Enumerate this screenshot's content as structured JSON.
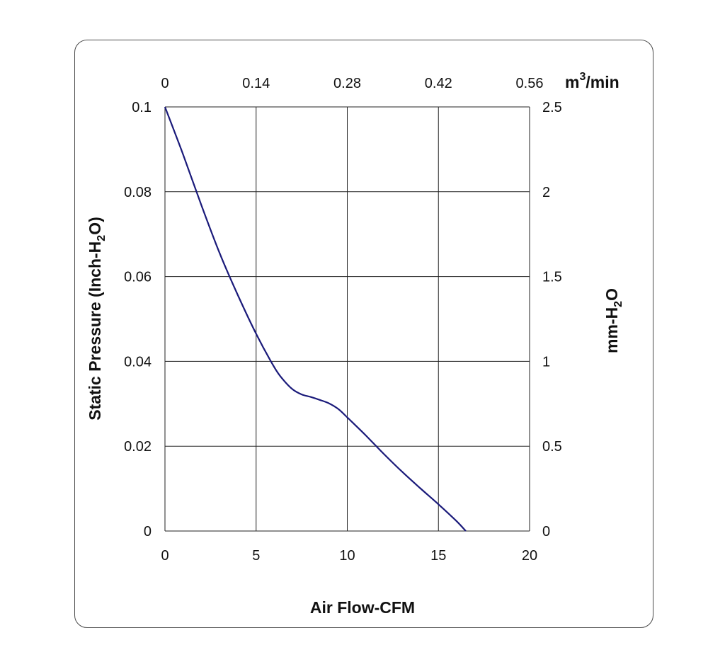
{
  "chart_data": {
    "type": "line",
    "xlabel": "Air Flow-CFM",
    "ylabel": {
      "pre": "Static Pressure (Inch-H",
      "sub": "2",
      "post": "O)"
    },
    "y2label": {
      "pre": "mm-H",
      "sub": "2",
      "post": "O"
    },
    "x2label": {
      "pre": "m",
      "sup": "3",
      "post": "/min"
    },
    "xlim": [
      0,
      20
    ],
    "ylim": [
      0,
      0.1
    ],
    "y2lim": [
      0,
      2.5
    ],
    "x2lim": [
      0,
      0.56
    ],
    "xticks": [
      "0",
      "5",
      "10",
      "15",
      "20"
    ],
    "yticks": [
      "0",
      "0.02",
      "0.04",
      "0.06",
      "0.08",
      "0.1"
    ],
    "y2ticks": [
      "0",
      "0.5",
      "1",
      "1.5",
      "2",
      "2.5"
    ],
    "x2ticks": [
      "0",
      "0.14",
      "0.28",
      "0.42",
      "0.56"
    ],
    "grid": true,
    "line_color": "#1a1a7a",
    "series": [
      {
        "x": [
          0,
          1,
          2,
          3,
          4,
          5,
          6,
          6.5,
          7,
          7.5,
          8,
          8.5,
          9,
          9.5,
          10,
          11,
          12,
          13,
          14,
          15,
          16,
          16.5
        ],
        "y": [
          0.1,
          0.0887,
          0.0768,
          0.0655,
          0.0556,
          0.0465,
          0.0386,
          0.0356,
          0.0334,
          0.0322,
          0.0316,
          0.0309,
          0.0301,
          0.0288,
          0.0268,
          0.0226,
          0.0182,
          0.014,
          0.0101,
          0.0063,
          0.0023,
          0
        ]
      }
    ]
  }
}
